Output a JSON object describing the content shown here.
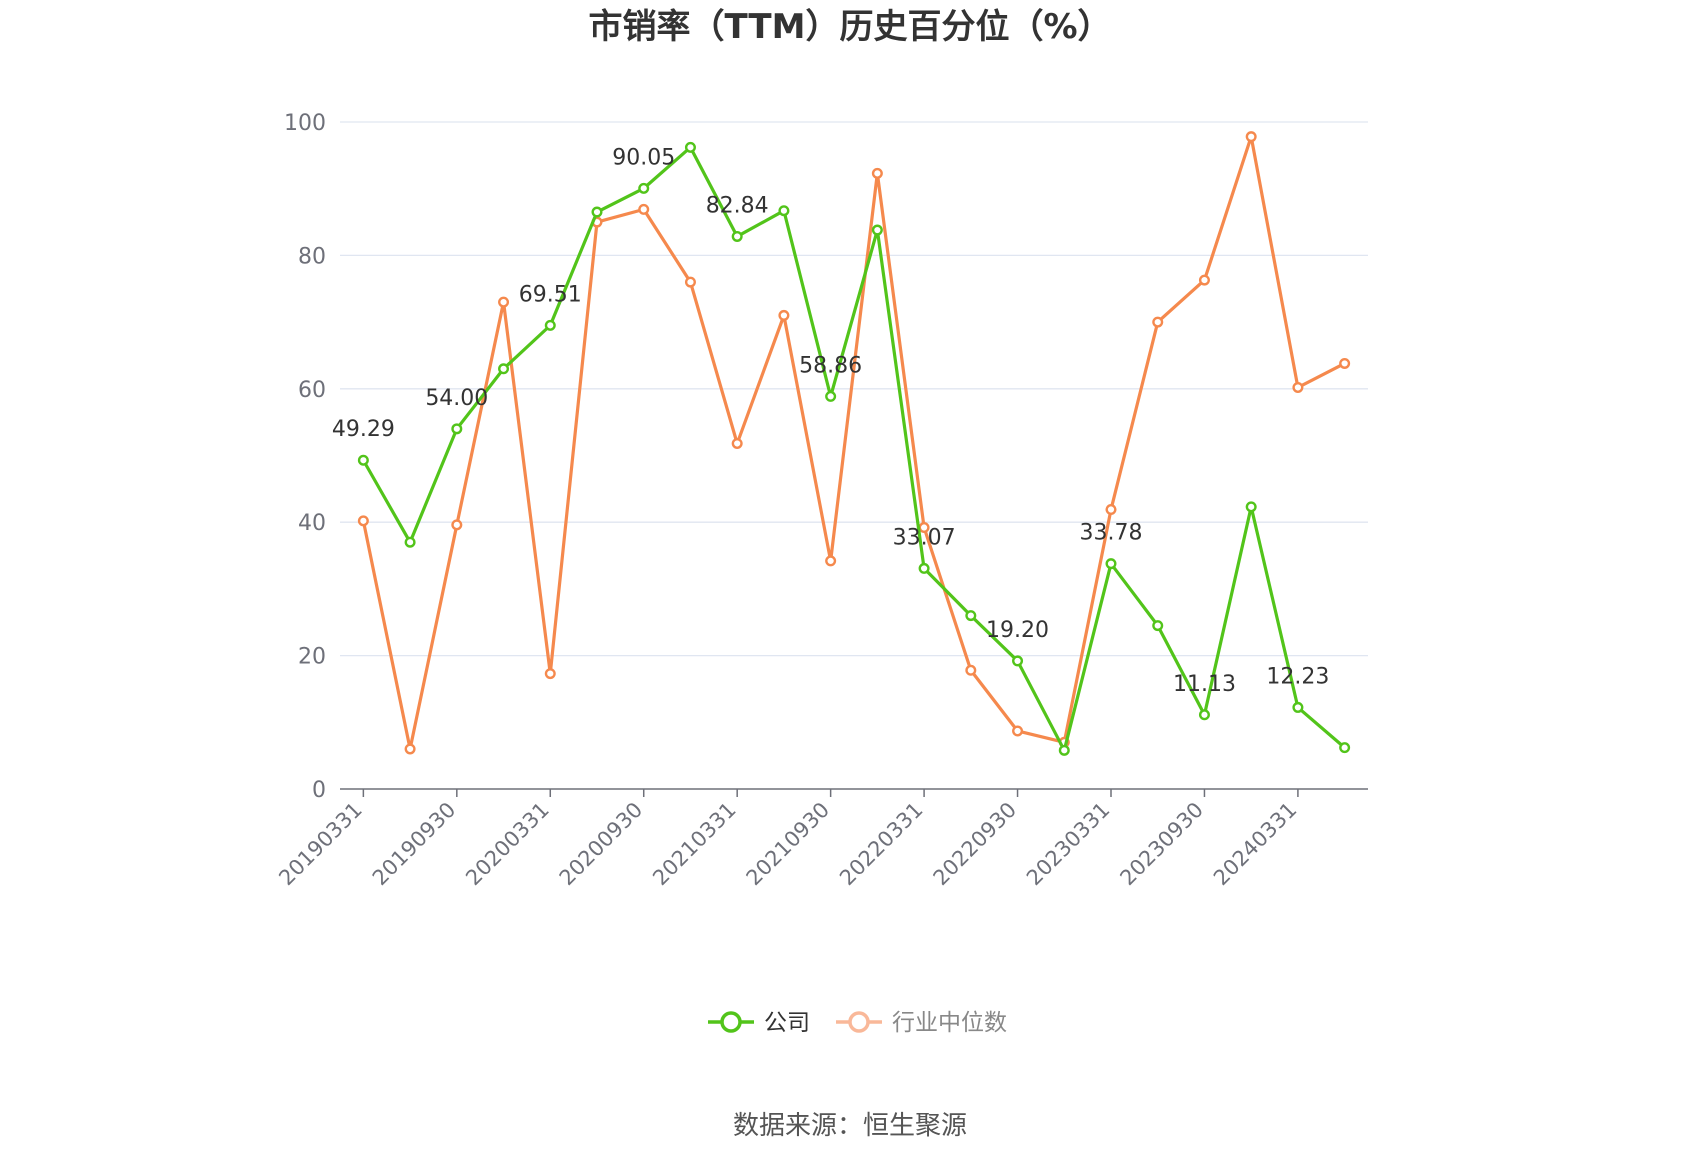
{
  "chart_data": {
    "type": "line",
    "title": "市销率（TTM）历史百分位（%）",
    "source": "数据来源：恒生聚源",
    "ylim": [
      0,
      100
    ],
    "yticks": [
      "0",
      "20",
      "40",
      "60",
      "80",
      "100"
    ],
    "grid": true,
    "legend_position": "bottom-center",
    "x": [
      "20190331",
      "20190630",
      "20190930",
      "20191231",
      "20200331",
      "20200630",
      "20200930",
      "20201231",
      "20210331",
      "20210630",
      "20210930",
      "20211231",
      "20220331",
      "20220630",
      "20220930",
      "20221231",
      "20230331",
      "20230630",
      "20230930",
      "20231231",
      "20240331",
      "20240630"
    ],
    "x_tick_labels": [
      "20190331",
      "20190930",
      "20200331",
      "20200930",
      "20210331",
      "20210930",
      "20220331",
      "20220930",
      "20230331",
      "20230930",
      "20240331"
    ],
    "series": [
      {
        "name": "公司",
        "color": "#52c41a",
        "values": [
          49.29,
          37.0,
          54.0,
          63.0,
          69.51,
          86.5,
          90.05,
          96.2,
          82.84,
          86.7,
          58.86,
          83.8,
          33.07,
          26.0,
          19.2,
          5.8,
          33.78,
          24.5,
          11.13,
          42.3,
          12.23,
          6.2
        ],
        "data_labels": [
          "49.29",
          "",
          "54.00",
          "",
          "69.51",
          "",
          "90.05",
          "",
          "82.84",
          "",
          "58.86",
          "",
          "33.07",
          "",
          "19.20",
          "",
          "33.78",
          "",
          "11.13",
          "",
          "12.23",
          ""
        ]
      },
      {
        "name": "行业中位数",
        "color": "#f5894d",
        "values": [
          40.2,
          6.0,
          39.6,
          73.0,
          17.3,
          85.0,
          86.9,
          76.0,
          51.8,
          71.0,
          34.2,
          92.3,
          39.2,
          17.8,
          8.7,
          7.0,
          41.9,
          70.0,
          76.3,
          97.8,
          60.2,
          63.8
        ],
        "data_labels": []
      }
    ]
  }
}
